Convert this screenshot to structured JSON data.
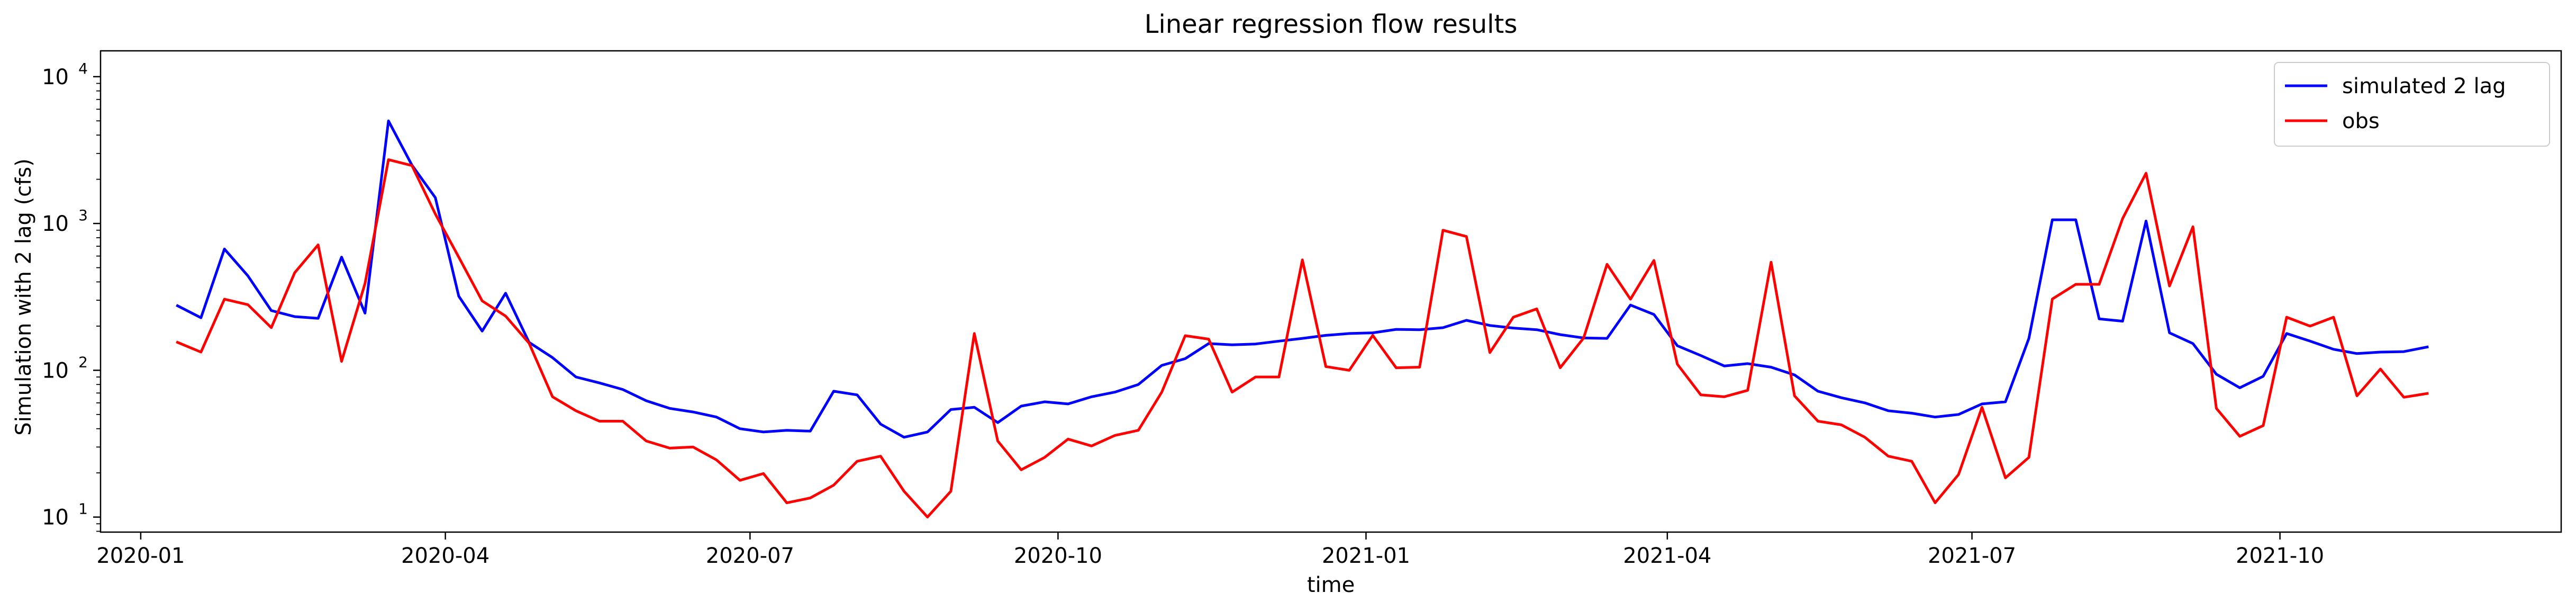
{
  "chart_data": {
    "type": "line",
    "title": "Linear regression flow results",
    "xlabel": "time",
    "ylabel": "Simulation with 2 lag (cfs)",
    "y_scale": "log",
    "ylim": [
      7.9,
      15000
    ],
    "xlim": [
      "2019-12-20",
      "2021-12-24"
    ],
    "grid": false,
    "legend_position": "upper right",
    "x_ticks": [
      "2020-01",
      "2020-04",
      "2020-07",
      "2020-10",
      "2021-01",
      "2021-04",
      "2021-07",
      "2021-10"
    ],
    "y_ticks": [
      {
        "value": 10,
        "base": "10",
        "exp": "1"
      },
      {
        "value": 100,
        "base": "10",
        "exp": "2"
      },
      {
        "value": 1000,
        "base": "10",
        "exp": "3"
      },
      {
        "value": 10000,
        "base": "10",
        "exp": "4"
      }
    ],
    "x": [
      "2020-01-12",
      "2020-01-19",
      "2020-01-26",
      "2020-02-02",
      "2020-02-09",
      "2020-02-16",
      "2020-02-23",
      "2020-03-01",
      "2020-03-08",
      "2020-03-15",
      "2020-03-22",
      "2020-03-29",
      "2020-04-05",
      "2020-04-12",
      "2020-04-19",
      "2020-04-26",
      "2020-05-03",
      "2020-05-10",
      "2020-05-17",
      "2020-05-24",
      "2020-05-31",
      "2020-06-07",
      "2020-06-14",
      "2020-06-21",
      "2020-06-28",
      "2020-07-05",
      "2020-07-12",
      "2020-07-19",
      "2020-07-26",
      "2020-08-02",
      "2020-08-09",
      "2020-08-16",
      "2020-08-23",
      "2020-08-30",
      "2020-09-06",
      "2020-09-13",
      "2020-09-20",
      "2020-09-27",
      "2020-10-04",
      "2020-10-11",
      "2020-10-18",
      "2020-10-25",
      "2020-11-01",
      "2020-11-08",
      "2020-11-15",
      "2020-11-22",
      "2020-11-29",
      "2020-12-06",
      "2020-12-13",
      "2020-12-20",
      "2020-12-27",
      "2021-01-03",
      "2021-01-10",
      "2021-01-17",
      "2021-01-24",
      "2021-01-31",
      "2021-02-07",
      "2021-02-14",
      "2021-02-21",
      "2021-02-28",
      "2021-03-07",
      "2021-03-14",
      "2021-03-21",
      "2021-03-28",
      "2021-04-04",
      "2021-04-11",
      "2021-04-18",
      "2021-04-25",
      "2021-05-02",
      "2021-05-09",
      "2021-05-16",
      "2021-05-23",
      "2021-05-30",
      "2021-06-06",
      "2021-06-13",
      "2021-06-20",
      "2021-06-27",
      "2021-07-04",
      "2021-07-11",
      "2021-07-18",
      "2021-07-25",
      "2021-08-01",
      "2021-08-08",
      "2021-08-15",
      "2021-08-22",
      "2021-08-29",
      "2021-09-05",
      "2021-09-12",
      "2021-09-19",
      "2021-09-26",
      "2021-10-03",
      "2021-10-10",
      "2021-10-17",
      "2021-10-24",
      "2021-10-31",
      "2021-11-07",
      "2021-11-14"
    ],
    "series": [
      {
        "name": "simulated 2 lag",
        "color": "#0000ff",
        "values": [
          275,
          228,
          670,
          440,
          255,
          232,
          226,
          590,
          245,
          5000,
          2500,
          1500,
          320,
          185,
          335,
          155,
          122,
          90,
          82,
          74,
          62,
          55,
          52,
          48,
          40,
          38,
          39,
          38.5,
          72,
          68,
          43,
          35,
          38,
          54,
          56,
          44,
          57,
          61,
          59,
          66,
          71,
          80,
          108,
          120,
          152,
          149,
          151,
          158,
          165,
          173,
          178,
          180,
          190,
          189,
          195,
          219,
          202,
          194,
          189,
          175,
          166,
          165,
          278,
          240,
          147,
          126,
          107,
          111,
          105,
          93,
          72,
          65,
          60,
          53,
          51,
          48,
          50,
          59,
          61,
          165,
          1060,
          1060,
          224,
          216,
          1040,
          180,
          152,
          94,
          76,
          91,
          178,
          158,
          139,
          130,
          133,
          134,
          144
        ]
      },
      {
        "name": "obs",
        "color": "#ff0000",
        "values": [
          155,
          133,
          305,
          280,
          195,
          462,
          715,
          115,
          390,
          2720,
          2480,
          1160,
          590,
          297,
          234,
          153,
          66,
          53,
          45,
          45,
          33,
          29.5,
          30,
          24.5,
          17.8,
          19.8,
          12.5,
          13.5,
          16.5,
          24,
          26,
          15,
          10,
          15,
          178,
          33,
          21,
          25.5,
          34,
          30.5,
          36,
          39,
          71,
          172,
          163,
          71,
          90,
          90,
          565,
          106,
          100,
          173,
          104,
          105,
          900,
          815,
          132,
          230,
          262,
          104,
          166,
          527,
          305,
          560,
          110,
          68,
          66,
          73,
          545,
          67,
          45,
          42.5,
          35,
          26,
          24,
          12.5,
          19.5,
          56,
          18.5,
          25.5,
          306,
          385,
          385,
          1080,
          2200,
          375,
          950,
          55,
          35.5,
          42,
          230,
          200,
          230,
          67,
          102,
          65.5,
          69.5
        ]
      }
    ]
  }
}
